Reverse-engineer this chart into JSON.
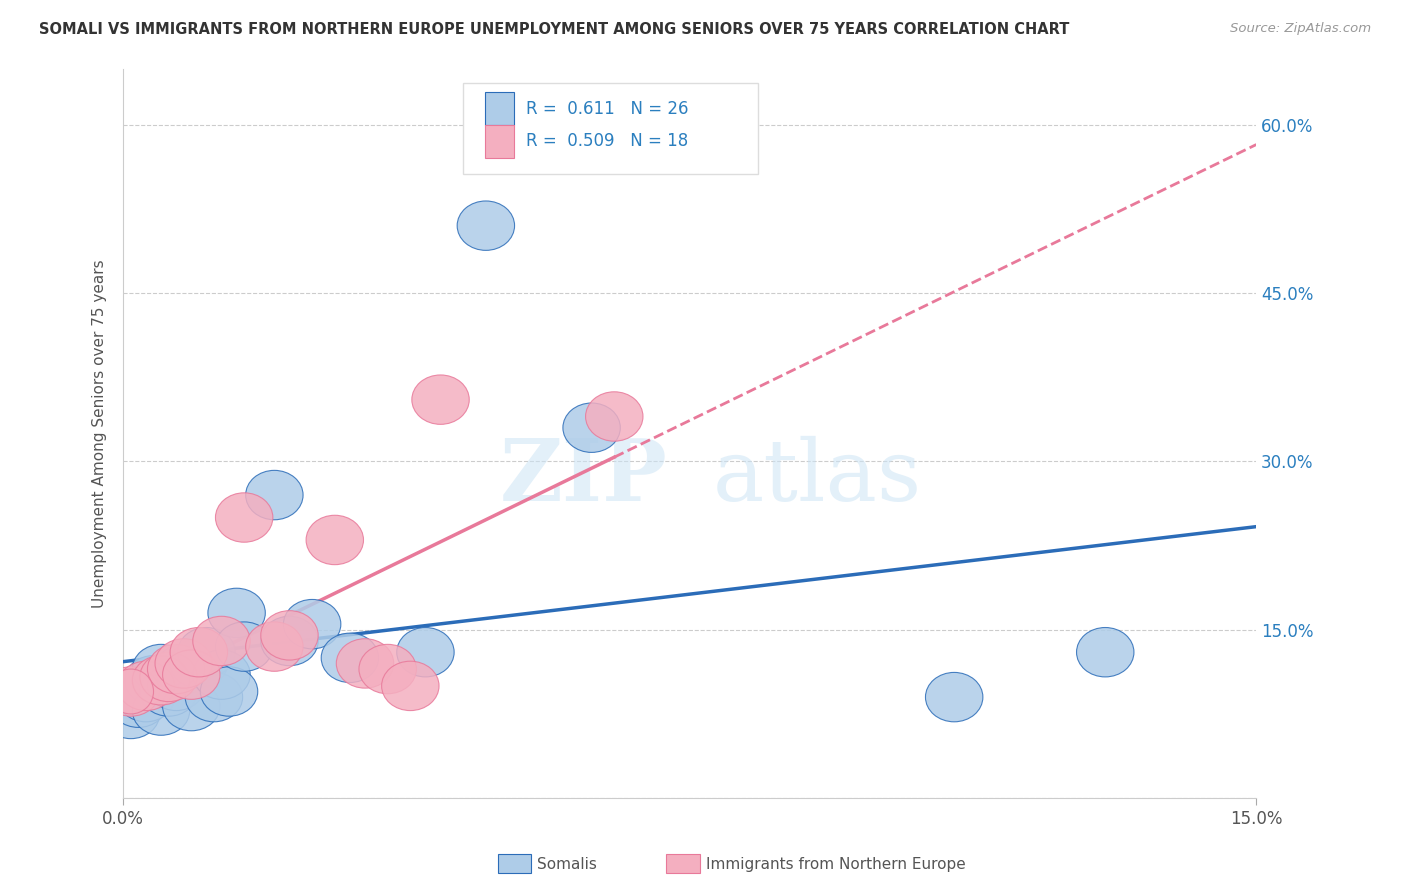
{
  "title": "SOMALI VS IMMIGRANTS FROM NORTHERN EUROPE UNEMPLOYMENT AMONG SENIORS OVER 75 YEARS CORRELATION CHART",
  "source": "Source: ZipAtlas.com",
  "ylabel": "Unemployment Among Seniors over 75 years",
  "xlim": [
    0.0,
    0.15
  ],
  "ylim": [
    0.0,
    0.65
  ],
  "ytick_labels": [
    "",
    "15.0%",
    "30.0%",
    "45.0%",
    "60.0%"
  ],
  "ytick_vals": [
    0.0,
    0.15,
    0.3,
    0.45,
    0.6
  ],
  "xtick_labels": [
    "0.0%",
    "15.0%"
  ],
  "xtick_vals": [
    0.0,
    0.15
  ],
  "somali_R": 0.611,
  "somali_N": 26,
  "northern_europe_R": 0.509,
  "northern_europe_N": 18,
  "somali_color": "#aecce8",
  "northern_europe_color": "#f4afc0",
  "somali_line_color": "#2b6cb8",
  "northern_europe_line_color": "#e8799a",
  "somali_x": [
    0.001,
    0.002,
    0.003,
    0.004,
    0.005,
    0.005,
    0.006,
    0.007,
    0.008,
    0.009,
    0.01,
    0.011,
    0.012,
    0.013,
    0.014,
    0.015,
    0.016,
    0.02,
    0.022,
    0.025,
    0.03,
    0.04,
    0.048,
    0.062,
    0.11,
    0.13
  ],
  "somali_y": [
    0.075,
    0.085,
    0.09,
    0.105,
    0.078,
    0.115,
    0.095,
    0.1,
    0.115,
    0.082,
    0.12,
    0.13,
    0.09,
    0.11,
    0.095,
    0.165,
    0.135,
    0.27,
    0.14,
    0.155,
    0.125,
    0.13,
    0.51,
    0.33,
    0.09,
    0.13
  ],
  "northern_europe_x": [
    0.001,
    0.003,
    0.005,
    0.006,
    0.007,
    0.008,
    0.009,
    0.01,
    0.013,
    0.016,
    0.02,
    0.022,
    0.028,
    0.032,
    0.035,
    0.038,
    0.042,
    0.065
  ],
  "northern_europe_y": [
    0.095,
    0.1,
    0.105,
    0.108,
    0.115,
    0.12,
    0.11,
    0.13,
    0.14,
    0.25,
    0.135,
    0.145,
    0.23,
    0.12,
    0.115,
    0.1,
    0.355,
    0.34
  ],
  "watermark_zip": "ZIP",
  "watermark_atlas": "atlas",
  "background_color": "#ffffff",
  "grid_color": "#cccccc"
}
